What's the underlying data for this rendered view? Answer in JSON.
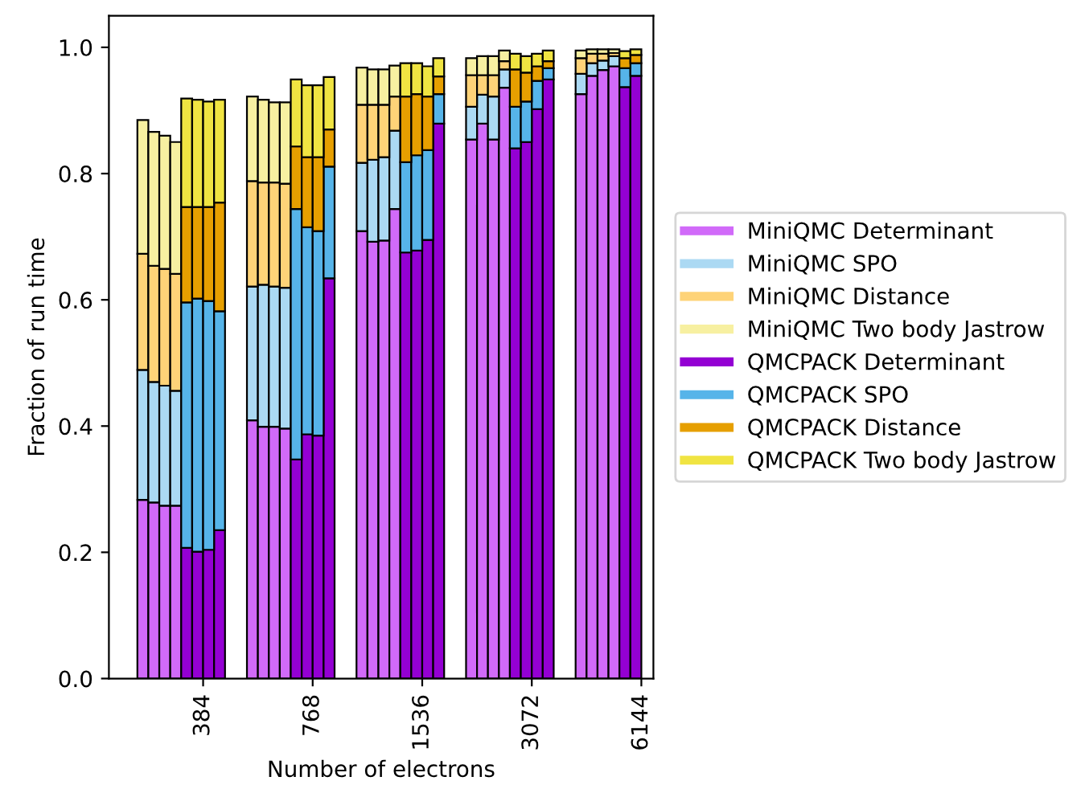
{
  "chart_data": {
    "type": "bar",
    "stacked": true,
    "xlabel": "Number of electrons",
    "ylabel": "Fraction of run time",
    "categories": [
      null,
      null,
      null,
      null,
      null,
      null,
      "384",
      null,
      null,
      null,
      null,
      null,
      null,
      null,
      null,
      null,
      "768",
      null,
      null,
      null,
      null,
      null,
      null,
      null,
      null,
      null,
      "1536",
      null,
      null,
      null,
      null,
      null,
      null,
      null,
      null,
      null,
      "3072",
      null,
      null,
      null,
      null,
      null,
      null,
      null,
      null,
      null,
      "6144"
    ],
    "ylim": [
      0,
      1.05
    ],
    "yticks": [
      {
        "value": 0,
        "label": "0.0"
      },
      {
        "value": 0.2,
        "label": "0.2"
      },
      {
        "value": 0.4,
        "label": "0.4"
      },
      {
        "value": 0.6,
        "label": "0.6"
      },
      {
        "value": 0.8,
        "label": "0.8"
      },
      {
        "value": 1.0,
        "label": "1.0"
      }
    ],
    "grid": false,
    "legend": "right",
    "series": [
      {
        "name": "MiniQMC Determinant",
        "color": "#d16af9",
        "values": [
          0.283,
          0.279,
          0.274,
          0.274,
          null,
          null,
          null,
          null,
          null,
          null,
          0.409,
          0.399,
          0.399,
          0.396,
          null,
          null,
          null,
          null,
          null,
          null,
          0.709,
          0.692,
          0.694,
          0.744,
          null,
          null,
          null,
          null,
          null,
          null,
          0.854,
          0.879,
          0.854,
          0.936,
          null,
          null,
          null,
          null,
          null,
          null,
          0.926,
          0.955,
          0.964,
          0.97,
          null,
          null,
          null
        ]
      },
      {
        "name": "MiniQMC SPO",
        "color": "#abd9f3",
        "values": [
          0.206,
          0.191,
          0.19,
          0.182,
          null,
          null,
          null,
          null,
          null,
          null,
          0.212,
          0.225,
          0.222,
          0.223,
          null,
          null,
          null,
          null,
          null,
          null,
          0.108,
          0.13,
          0.132,
          0.124,
          null,
          null,
          null,
          null,
          null,
          null,
          0.052,
          0.046,
          0.068,
          0.029,
          null,
          null,
          null,
          null,
          null,
          null,
          0.032,
          0.02,
          0.015,
          0.016,
          null,
          null,
          null
        ]
      },
      {
        "name": "MiniQMC Distance",
        "color": "#fed378",
        "values": [
          0.184,
          0.184,
          0.185,
          0.185,
          null,
          null,
          null,
          null,
          null,
          null,
          0.167,
          0.162,
          0.165,
          0.165,
          null,
          null,
          null,
          null,
          null,
          null,
          0.092,
          0.087,
          0.083,
          0.054,
          null,
          null,
          null,
          null,
          null,
          null,
          0.05,
          0.031,
          0.034,
          0.013,
          null,
          null,
          null,
          null,
          null,
          null,
          0.025,
          0.015,
          0.011,
          0.005,
          null,
          null,
          null
        ]
      },
      {
        "name": "MiniQMC Two body Jastrow",
        "color": "#f7f0a1",
        "values": [
          0.212,
          0.212,
          0.211,
          0.209,
          null,
          null,
          null,
          null,
          null,
          null,
          0.134,
          0.131,
          0.127,
          0.129,
          null,
          null,
          null,
          null,
          null,
          null,
          0.059,
          0.056,
          0.056,
          0.049,
          null,
          null,
          null,
          null,
          null,
          null,
          0.027,
          0.03,
          0.03,
          0.017,
          null,
          null,
          null,
          null,
          null,
          null,
          0.012,
          0.007,
          0.007,
          0.006,
          null,
          null,
          null
        ]
      },
      {
        "name": "QMCPACK Determinant",
        "color": "#9400d3",
        "values": [
          null,
          null,
          null,
          null,
          0.207,
          0.201,
          0.204,
          0.235,
          null,
          null,
          null,
          null,
          null,
          null,
          0.347,
          0.387,
          0.385,
          0.634,
          null,
          null,
          null,
          null,
          null,
          null,
          0.675,
          0.678,
          0.695,
          0.879,
          null,
          null,
          null,
          null,
          null,
          null,
          0.84,
          0.85,
          0.902,
          0.949,
          null,
          null,
          null,
          null,
          null,
          null,
          0.937,
          0.955,
          null
        ]
      },
      {
        "name": "QMCPACK SPO",
        "color": "#56b4e9",
        "values": [
          null,
          null,
          null,
          null,
          0.389,
          0.401,
          0.394,
          0.347,
          null,
          null,
          null,
          null,
          null,
          null,
          0.397,
          0.328,
          0.324,
          0.177,
          null,
          null,
          null,
          null,
          null,
          null,
          0.143,
          0.151,
          0.142,
          0.047,
          null,
          null,
          null,
          null,
          null,
          null,
          0.066,
          0.064,
          0.045,
          0.018,
          null,
          null,
          null,
          null,
          null,
          null,
          0.03,
          0.02,
          null
        ]
      },
      {
        "name": "QMCPACK Distance",
        "color": "#e69f00",
        "values": [
          null,
          null,
          null,
          null,
          0.151,
          0.145,
          0.149,
          0.172,
          null,
          null,
          null,
          null,
          null,
          null,
          0.099,
          0.111,
          0.117,
          0.059,
          null,
          null,
          null,
          null,
          null,
          null,
          0.104,
          0.097,
          0.085,
          0.028,
          null,
          null,
          null,
          null,
          null,
          null,
          0.059,
          0.046,
          0.023,
          0.011,
          null,
          null,
          null,
          null,
          null,
          null,
          0.016,
          0.013,
          null
        ]
      },
      {
        "name": "QMCPACK Two body Jastrow",
        "color": "#f0e442",
        "values": [
          null,
          null,
          null,
          null,
          0.172,
          0.17,
          0.167,
          0.163,
          null,
          null,
          null,
          null,
          null,
          null,
          0.106,
          0.114,
          0.114,
          0.083,
          null,
          null,
          null,
          null,
          null,
          null,
          0.053,
          0.049,
          0.048,
          0.029,
          null,
          null,
          null,
          null,
          null,
          null,
          0.025,
          0.026,
          0.02,
          0.017,
          null,
          null,
          null,
          null,
          null,
          null,
          0.011,
          0.009,
          null
        ]
      }
    ]
  }
}
